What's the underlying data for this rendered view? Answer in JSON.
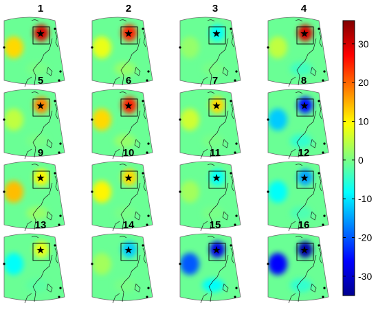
{
  "panels": [
    {
      "label": "1",
      "anomaly_at_star": 30,
      "west_anomaly": 12,
      "south_anomaly": 0
    },
    {
      "label": "2",
      "anomaly_at_star": 25,
      "west_anomaly": 8,
      "south_anomaly": 2
    },
    {
      "label": "3",
      "anomaly_at_star": -8,
      "west_anomaly": 2,
      "south_anomaly": 0
    },
    {
      "label": "4",
      "anomaly_at_star": 30,
      "west_anomaly": 5,
      "south_anomaly": -4
    },
    {
      "label": "5",
      "anomaly_at_star": 18,
      "west_anomaly": 5,
      "south_anomaly": 0
    },
    {
      "label": "6",
      "anomaly_at_star": 25,
      "west_anomaly": 12,
      "south_anomaly": 2
    },
    {
      "label": "7",
      "anomaly_at_star": 12,
      "west_anomaly": 6,
      "south_anomaly": 0
    },
    {
      "label": "8",
      "anomaly_at_star": -25,
      "west_anomaly": -12,
      "south_anomaly": -5
    },
    {
      "label": "9",
      "anomaly_at_star": 10,
      "west_anomaly": 14,
      "south_anomaly": 2
    },
    {
      "label": "10",
      "anomaly_at_star": 12,
      "west_anomaly": 10,
      "south_anomaly": 0
    },
    {
      "label": "11",
      "anomaly_at_star": -8,
      "west_anomaly": 3,
      "south_anomaly": 0
    },
    {
      "label": "12",
      "anomaly_at_star": -15,
      "west_anomaly": -8,
      "south_anomaly": -3
    },
    {
      "label": "13",
      "anomaly_at_star": 8,
      "west_anomaly": -8,
      "south_anomaly": -2
    },
    {
      "label": "14",
      "anomaly_at_star": -12,
      "west_anomaly": 3,
      "south_anomaly": 0
    },
    {
      "label": "15",
      "anomaly_at_star": -28,
      "west_anomaly": -20,
      "south_anomaly": -8
    },
    {
      "label": "16",
      "anomaly_at_star": -32,
      "west_anomaly": -26,
      "south_anomaly": -5
    }
  ],
  "colorbar": {
    "min": -35,
    "max": 36,
    "ticks": [
      "30",
      "20",
      "10",
      "0",
      "-10",
      "-20",
      "-30"
    ],
    "tick_values": [
      30,
      20,
      10,
      0,
      -10,
      -20,
      -30
    ],
    "colormap": "jet"
  }
}
